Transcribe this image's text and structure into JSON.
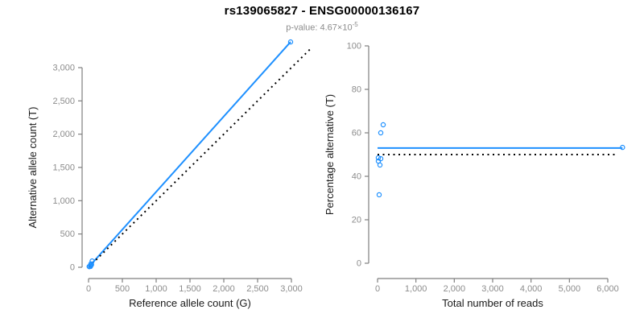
{
  "header": {
    "title": "rs139065827 - ENSG00000136167",
    "pvalue_label": "p-value:",
    "pvalue_mantissa": "4.67×10",
    "pvalue_exponent": "-5"
  },
  "colors": {
    "accent_blue": "#1E90FF",
    "axis_line_gray": "#7f7f7f",
    "tick_label_gray": "#8c8c8c",
    "axis_title_black": "#1a1a1a",
    "dotted_line_black": "#000000",
    "background": "#ffffff"
  },
  "chart_data": [
    {
      "type": "scatter",
      "name": "allele-counts-panel",
      "xlabel": "Reference allele count (G)",
      "ylabel": "Alternative allele count (T)",
      "xlim": [
        0,
        3000
      ],
      "ylim": [
        0,
        3000
      ],
      "grid": false,
      "legend": null,
      "xtick_values": [
        0,
        500,
        1000,
        1500,
        2000,
        2500,
        3000
      ],
      "xtick_labels": [
        "0",
        "500",
        "1,000",
        "1,500",
        "2,000",
        "2,500",
        "3,000"
      ],
      "ytick_values": [
        0,
        500,
        1000,
        1500,
        2000,
        2500,
        3000
      ],
      "ytick_labels": [
        "0",
        "500",
        "1,000",
        "1,500",
        "2,000",
        "2,500",
        "3,000"
      ],
      "points": [
        [
          53,
          94
        ],
        [
          34,
          50
        ],
        [
          10,
          10
        ],
        [
          44,
          40
        ],
        [
          11,
          10
        ],
        [
          35,
          28
        ],
        [
          29,
          13
        ],
        [
          2988,
          3386
        ]
      ],
      "lines": [
        {
          "name": "fitted-line",
          "style": "solid",
          "color_key": "accent_blue",
          "from": [
            0,
            0
          ],
          "to": [
            2988,
            3386
          ]
        },
        {
          "name": "identity-line",
          "style": "dotted",
          "color_key": "dotted_line_black",
          "from": [
            0,
            0
          ],
          "to": [
            3300,
            3300
          ]
        }
      ]
    },
    {
      "type": "scatter",
      "name": "percentage-panel",
      "xlabel": "Total number of reads",
      "ylabel": "Percentage alternative (T)",
      "xlim": [
        0,
        6000
      ],
      "ylim": [
        0,
        100
      ],
      "grid": false,
      "legend": null,
      "xtick_values": [
        0,
        1000,
        2000,
        3000,
        4000,
        5000,
        6000
      ],
      "xtick_labels": [
        "0",
        "1,000",
        "2,000",
        "3,000",
        "4,000",
        "5,000",
        "6,000"
      ],
      "ytick_values": [
        0,
        20,
        40,
        60,
        80,
        100
      ],
      "ytick_labels": [
        "0",
        "20",
        "40",
        "60",
        "80",
        "100"
      ],
      "points": [
        [
          147,
          63.7
        ],
        [
          84,
          60
        ],
        [
          20,
          48.5
        ],
        [
          84,
          48.1
        ],
        [
          21,
          47
        ],
        [
          63,
          45.2
        ],
        [
          42,
          31.5
        ],
        [
          6384,
          53.3
        ]
      ],
      "lines": [
        {
          "name": "fitted-percentage-line",
          "style": "solid",
          "color_key": "accent_blue",
          "from": [
            0,
            53
          ],
          "to": [
            6384,
            53
          ]
        },
        {
          "name": "null-50pct-line",
          "style": "dotted",
          "color_key": "dotted_line_black",
          "from": [
            0,
            50
          ],
          "to": [
            6260,
            50
          ]
        }
      ]
    }
  ]
}
